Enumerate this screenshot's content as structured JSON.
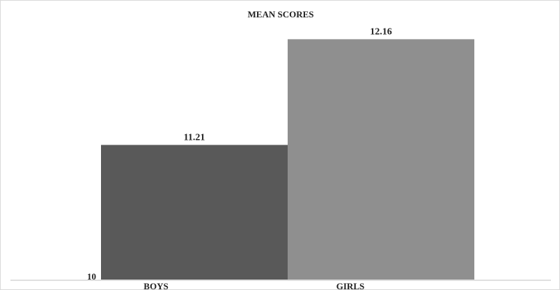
{
  "chart_data": {
    "type": "bar",
    "title": "MEAN SCORES",
    "categories": [
      "BOYS",
      "GIRLS"
    ],
    "values": [
      11.21,
      12.16
    ],
    "data_labels": [
      "11.21",
      "12.16"
    ],
    "colors": [
      "#595959",
      "#8f8f8f"
    ],
    "xlabel": "",
    "ylabel": "",
    "ylim": [
      10,
      12.4
    ],
    "y_tick_labels": [
      "10"
    ],
    "grid": false
  }
}
